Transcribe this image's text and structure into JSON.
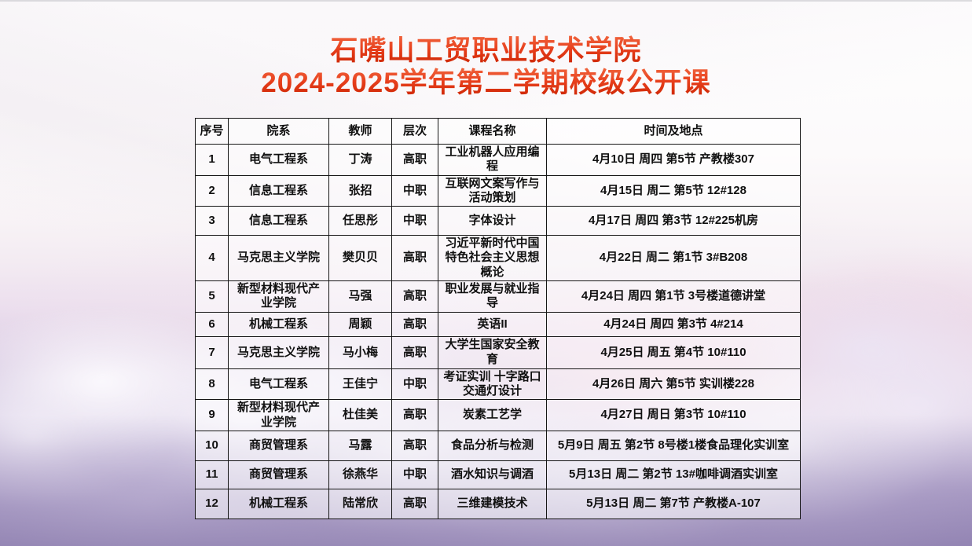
{
  "page": {
    "title_line1": "石嘴山工贸职业技术学院",
    "title_line2": "2024-2025学年第二学期校级公开课",
    "title_colors": {
      "top": "#f0663f",
      "mid": "#e8401d",
      "bottom": "#c92200"
    },
    "grid_color": "#161616"
  },
  "table": {
    "columns": [
      "序号",
      "院系",
      "教师",
      "层次",
      "课程名称",
      "时间及地点"
    ],
    "rows": [
      {
        "no": "1",
        "department": "电气工程系",
        "teacher": "丁涛",
        "level": "高职",
        "course": "工业机器人应用编程",
        "time": "4月10日 周四 第5节 产教楼307"
      },
      {
        "no": "2",
        "department": "信息工程系",
        "teacher": "张招",
        "level": "中职",
        "course": "互联网文案写作与活动策划",
        "time": "4月15日 周二 第5节 12#128"
      },
      {
        "no": "3",
        "department": "信息工程系",
        "teacher": "任思彤",
        "level": "中职",
        "course": "字体设计",
        "time": "4月17日 周四 第3节 12#225机房"
      },
      {
        "no": "4",
        "department": "马克思主义学院",
        "teacher": "樊贝贝",
        "level": "高职",
        "course": "习近平新时代中国特色社会主义思想概论",
        "time": "4月22日 周二 第1节 3#B208"
      },
      {
        "no": "5",
        "department": "新型材料现代产业学院",
        "teacher": "马强",
        "level": "高职",
        "course": "职业发展与就业指导",
        "time": "4月24日 周四 第1节 3号楼道德讲堂"
      },
      {
        "no": "6",
        "department": "机械工程系",
        "teacher": "周颖",
        "level": "高职",
        "course": "英语II",
        "time": "4月24日 周四 第3节 4#214"
      },
      {
        "no": "7",
        "department": "马克思主义学院",
        "teacher": "马小梅",
        "level": "高职",
        "course": "大学生国家安全教育",
        "time": "4月25日 周五 第4节 10#110"
      },
      {
        "no": "8",
        "department": "电气工程系",
        "teacher": "王佳宁",
        "level": "中职",
        "course": "考证实训 十字路口交通灯设计",
        "time": "4月26日 周六 第5节 实训楼228"
      },
      {
        "no": "9",
        "department": "新型材料现代产业学院",
        "teacher": "杜佳美",
        "level": "高职",
        "course": "炭素工艺学",
        "time": "4月27日 周日 第3节 10#110"
      },
      {
        "no": "10",
        "department": "商贸管理系",
        "teacher": "马露",
        "level": "高职",
        "course": "食品分析与检测",
        "time": "5月9日 周五 第2节 8号楼1楼食品理化实训室"
      },
      {
        "no": "11",
        "department": "商贸管理系",
        "teacher": "徐燕华",
        "level": "中职",
        "course": "酒水知识与调酒",
        "time": "5月13日 周二 第2节 13#咖啡调酒实训室"
      },
      {
        "no": "12",
        "department": "机械工程系",
        "teacher": "陆常欣",
        "level": "高职",
        "course": "三维建模技术",
        "time": "5月13日 周二 第7节 产教楼A-107"
      }
    ]
  }
}
